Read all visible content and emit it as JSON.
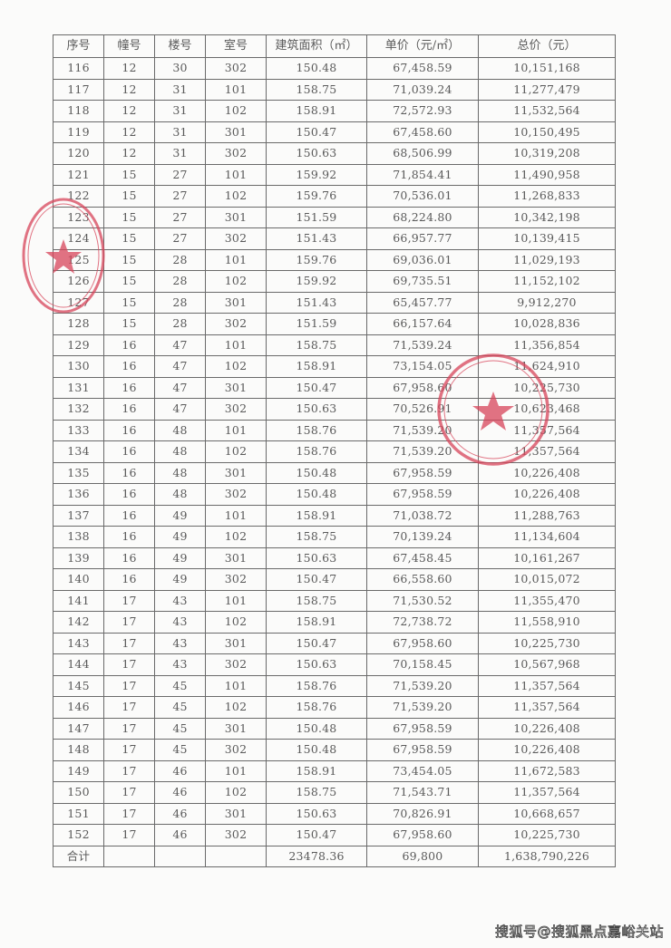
{
  "table": {
    "headers": [
      "序号",
      "幢号",
      "楼号",
      "室号",
      "建筑面积（㎡）",
      "单价（元/㎡）",
      "总价（元）"
    ],
    "rows": [
      [
        "116",
        "12",
        "30",
        "302",
        "150.48",
        "67,458.59",
        "10,151,168"
      ],
      [
        "117",
        "12",
        "31",
        "101",
        "158.75",
        "71,039.24",
        "11,277,479"
      ],
      [
        "118",
        "12",
        "31",
        "102",
        "158.91",
        "72,572.93",
        "11,532,564"
      ],
      [
        "119",
        "12",
        "31",
        "301",
        "150.47",
        "67,458.60",
        "10,150,495"
      ],
      [
        "120",
        "12",
        "31",
        "302",
        "150.63",
        "68,506.99",
        "10,319,208"
      ],
      [
        "121",
        "15",
        "27",
        "101",
        "159.92",
        "71,854.41",
        "11,490,958"
      ],
      [
        "122",
        "15",
        "27",
        "102",
        "159.76",
        "70,536.01",
        "11,268,833"
      ],
      [
        "123",
        "15",
        "27",
        "301",
        "151.59",
        "68,224.80",
        "10,342,198"
      ],
      [
        "124",
        "15",
        "27",
        "302",
        "151.43",
        "66,957.77",
        "10,139,415"
      ],
      [
        "125",
        "15",
        "28",
        "101",
        "159.76",
        "69,036.01",
        "11,029,193"
      ],
      [
        "126",
        "15",
        "28",
        "102",
        "159.92",
        "69,735.51",
        "11,152,102"
      ],
      [
        "127",
        "15",
        "28",
        "301",
        "151.43",
        "65,457.77",
        "9,912,270"
      ],
      [
        "128",
        "15",
        "28",
        "302",
        "151.59",
        "66,157.64",
        "10,028,836"
      ],
      [
        "129",
        "16",
        "47",
        "101",
        "158.75",
        "71,539.24",
        "11,356,854"
      ],
      [
        "130",
        "16",
        "47",
        "102",
        "158.91",
        "73,154.05",
        "11,624,910"
      ],
      [
        "131",
        "16",
        "47",
        "301",
        "150.47",
        "67,958.60",
        "10,225,730"
      ],
      [
        "132",
        "16",
        "47",
        "302",
        "150.63",
        "70,526.91",
        "10,623,468"
      ],
      [
        "133",
        "16",
        "48",
        "101",
        "158.76",
        "71,539.20",
        "11,357,564"
      ],
      [
        "134",
        "16",
        "48",
        "102",
        "158.76",
        "71,539.20",
        "11,357,564"
      ],
      [
        "135",
        "16",
        "48",
        "301",
        "150.48",
        "67,958.59",
        "10,226,408"
      ],
      [
        "136",
        "16",
        "48",
        "302",
        "150.48",
        "67,958.59",
        "10,226,408"
      ],
      [
        "137",
        "16",
        "49",
        "101",
        "158.91",
        "71,038.72",
        "11,288,763"
      ],
      [
        "138",
        "16",
        "49",
        "102",
        "158.75",
        "70,139.24",
        "11,134,604"
      ],
      [
        "139",
        "16",
        "49",
        "301",
        "150.63",
        "67,458.45",
        "10,161,267"
      ],
      [
        "140",
        "16",
        "49",
        "302",
        "150.47",
        "66,558.60",
        "10,015,072"
      ],
      [
        "141",
        "17",
        "43",
        "101",
        "158.75",
        "71,530.52",
        "11,355,470"
      ],
      [
        "142",
        "17",
        "43",
        "102",
        "158.91",
        "72,738.72",
        "11,558,910"
      ],
      [
        "143",
        "17",
        "43",
        "301",
        "150.47",
        "67,958.60",
        "10,225,730"
      ],
      [
        "144",
        "17",
        "43",
        "302",
        "150.63",
        "70,158.45",
        "10,567,968"
      ],
      [
        "145",
        "17",
        "45",
        "101",
        "158.76",
        "71,539.20",
        "11,357,564"
      ],
      [
        "146",
        "17",
        "45",
        "102",
        "158.76",
        "71,539.20",
        "11,357,564"
      ],
      [
        "147",
        "17",
        "45",
        "301",
        "150.48",
        "67,958.59",
        "10,226,408"
      ],
      [
        "148",
        "17",
        "45",
        "302",
        "150.48",
        "67,958.59",
        "10,226,408"
      ],
      [
        "149",
        "17",
        "46",
        "101",
        "158.91",
        "73,454.05",
        "11,672,583"
      ],
      [
        "150",
        "17",
        "46",
        "102",
        "158.75",
        "71,543.71",
        "11,357,564"
      ],
      [
        "151",
        "17",
        "46",
        "301",
        "150.63",
        "70,826.91",
        "10,668,657"
      ],
      [
        "152",
        "17",
        "46",
        "302",
        "150.47",
        "67,958.60",
        "10,225,730"
      ]
    ],
    "total": [
      "合计",
      "",
      "",
      "",
      "23478.36",
      "69,800",
      "1,638,790,226"
    ]
  },
  "stamp_color": "#d8455a",
  "watermark": "搜狐号@搜狐黑点嘉峪关站"
}
